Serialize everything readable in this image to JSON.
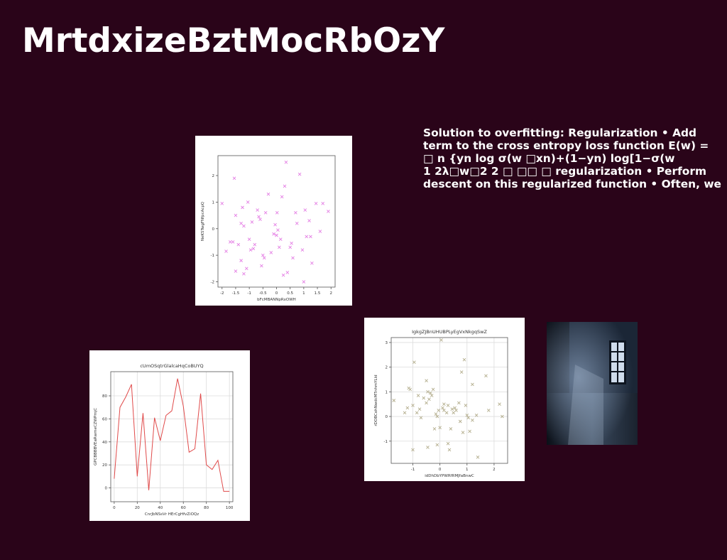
{
  "slide": {
    "title": "MrtdxizeBztMocRbOzY",
    "text_lines": [
      "Solution to overfitting: Regularization • Add",
      "term to the cross entropy loss function E(w) =",
      "□ n {yn log σ(w □xn)+(1−yn) log[1−σ(w",
      "1 2λ□w□2 2 □ □□ □ regularization • Perform",
      "descent on this regularized function • Often, we"
    ]
  },
  "chart_data": [
    {
      "type": "scatter",
      "title": "",
      "xlabel": "bFcMBANNpRxOWH",
      "ylabel": "NeKSTwgFNfpcAcpQ",
      "xlim": [
        -2.15,
        2.15
      ],
      "ylim": [
        -2.2,
        2.75
      ],
      "xticks": [
        -2.0,
        -1.5,
        -1.0,
        -0.5,
        0.0,
        0.5,
        1.0,
        1.5,
        2.0
      ],
      "yticks": [
        -2,
        -1,
        0,
        1,
        2
      ],
      "marker": "x",
      "color": "#e47fe4",
      "grid": false,
      "points": [
        [
          -2.0,
          0.95
        ],
        [
          -1.85,
          -0.85
        ],
        [
          -1.7,
          -0.5
        ],
        [
          -1.6,
          -0.5
        ],
        [
          -1.55,
          1.9
        ],
        [
          -1.5,
          -1.6
        ],
        [
          -1.5,
          0.5
        ],
        [
          -1.4,
          -0.6
        ],
        [
          -1.3,
          0.2
        ],
        [
          -1.3,
          -1.2
        ],
        [
          -1.2,
          -1.7
        ],
        [
          -1.25,
          0.8
        ],
        [
          -1.2,
          0.1
        ],
        [
          -1.1,
          -1.5
        ],
        [
          -1.05,
          1.0
        ],
        [
          -1.0,
          -0.4
        ],
        [
          -0.95,
          -0.8
        ],
        [
          -0.9,
          0.25
        ],
        [
          -0.85,
          -0.75
        ],
        [
          -0.8,
          -0.6
        ],
        [
          -0.7,
          0.7
        ],
        [
          -0.65,
          0.45
        ],
        [
          -0.6,
          0.35
        ],
        [
          -0.55,
          -1.4
        ],
        [
          -0.5,
          -1.0
        ],
        [
          -0.45,
          -1.1
        ],
        [
          -0.4,
          0.6
        ],
        [
          -0.3,
          1.3
        ],
        [
          -0.2,
          -0.9
        ],
        [
          -0.1,
          -0.2
        ],
        [
          -0.05,
          0.15
        ],
        [
          0.0,
          -0.25
        ],
        [
          0.02,
          0.6
        ],
        [
          0.05,
          -0.05
        ],
        [
          0.1,
          -0.7
        ],
        [
          0.15,
          -0.4
        ],
        [
          0.2,
          1.2
        ],
        [
          0.25,
          -1.75
        ],
        [
          0.3,
          1.6
        ],
        [
          0.35,
          2.5
        ],
        [
          0.4,
          -1.65
        ],
        [
          0.5,
          -0.7
        ],
        [
          0.55,
          -0.55
        ],
        [
          0.6,
          -1.1
        ],
        [
          0.7,
          0.6
        ],
        [
          0.75,
          0.2
        ],
        [
          0.85,
          2.05
        ],
        [
          0.95,
          -0.8
        ],
        [
          1.0,
          -2.0
        ],
        [
          1.05,
          0.7
        ],
        [
          1.1,
          -0.3
        ],
        [
          1.2,
          0.3
        ],
        [
          1.25,
          -0.3
        ],
        [
          1.3,
          -1.3
        ],
        [
          1.45,
          0.95
        ],
        [
          1.6,
          -0.1
        ],
        [
          1.7,
          0.95
        ],
        [
          1.9,
          0.65
        ]
      ]
    },
    {
      "type": "scatter",
      "title": "IgkgZJBnUHUBPLyEgVxNkgqSwZ",
      "xlabel": "idDhDbYPWRfRMJfaBnwC",
      "ylabel": "rDOBCohNwdcMTnhmYLld",
      "xlim": [
        -1.8,
        2.5
      ],
      "ylim": [
        -1.9,
        3.2
      ],
      "xticks": [
        -1,
        0,
        1,
        2
      ],
      "yticks": [
        -1,
        0,
        1,
        2,
        3
      ],
      "marker": "x",
      "color": "#b3ad8c",
      "grid": true,
      "points": [
        [
          -1.7,
          0.65
        ],
        [
          -1.3,
          0.15
        ],
        [
          -1.2,
          0.35
        ],
        [
          -1.15,
          1.15
        ],
        [
          -1.1,
          1.1
        ],
        [
          -1.0,
          -1.35
        ],
        [
          -1.0,
          0.45
        ],
        [
          -0.95,
          2.2
        ],
        [
          -0.85,
          0.15
        ],
        [
          -0.8,
          0.85
        ],
        [
          -0.75,
          0.3
        ],
        [
          -0.7,
          -0.05
        ],
        [
          -0.6,
          0.75
        ],
        [
          -0.5,
          0.55
        ],
        [
          -0.5,
          1.45
        ],
        [
          -0.45,
          1.0
        ],
        [
          -0.45,
          -1.25
        ],
        [
          -0.4,
          0.7
        ],
        [
          -0.35,
          0.95
        ],
        [
          -0.3,
          0.85
        ],
        [
          -0.25,
          1.1
        ],
        [
          -0.2,
          -0.5
        ],
        [
          -0.15,
          0.1
        ],
        [
          -0.1,
          0.0
        ],
        [
          -0.1,
          -1.15
        ],
        [
          -0.05,
          0.25
        ],
        [
          0.0,
          -0.45
        ],
        [
          0.05,
          3.1
        ],
        [
          0.1,
          0.35
        ],
        [
          0.15,
          0.25
        ],
        [
          0.15,
          0.5
        ],
        [
          0.25,
          0.15
        ],
        [
          0.3,
          -1.1
        ],
        [
          0.3,
          0.45
        ],
        [
          0.35,
          -1.35
        ],
        [
          0.4,
          -0.5
        ],
        [
          0.45,
          0.3
        ],
        [
          0.5,
          0.15
        ],
        [
          0.55,
          0.35
        ],
        [
          0.6,
          0.25
        ],
        [
          0.7,
          0.55
        ],
        [
          0.75,
          -0.2
        ],
        [
          0.8,
          1.8
        ],
        [
          0.85,
          -0.65
        ],
        [
          0.9,
          2.3
        ],
        [
          0.95,
          0.45
        ],
        [
          1.0,
          0.05
        ],
        [
          1.05,
          -0.05
        ],
        [
          1.1,
          -0.6
        ],
        [
          1.2,
          1.3
        ],
        [
          1.2,
          -0.15
        ],
        [
          1.35,
          0.05
        ],
        [
          1.4,
          -1.65
        ],
        [
          1.7,
          1.65
        ],
        [
          1.8,
          0.25
        ],
        [
          2.2,
          0.5
        ],
        [
          2.3,
          0.0
        ]
      ]
    },
    {
      "type": "line",
      "title": "cUmOSqtrGlalcaHqCoBUYQ",
      "xlabel": "CnrJbNSsVr HErCgHfvZiOQz",
      "ylabel": "GPCBBBBVEaRwmeCZWPmjC",
      "xlim": [
        -3,
        103
      ],
      "ylim": [
        -12,
        101
      ],
      "xticks": [
        0,
        20,
        40,
        60,
        80,
        100
      ],
      "yticks": [
        0,
        20,
        40,
        60,
        80
      ],
      "color": "#e04a4a",
      "grid": true,
      "x": [
        0,
        5,
        10,
        15,
        20,
        25,
        30,
        35,
        40,
        45,
        50,
        55,
        60,
        65,
        70,
        75,
        80,
        85,
        90,
        95,
        100
      ],
      "y": [
        8,
        70,
        79,
        90,
        10,
        65,
        -2,
        61,
        41,
        63,
        67,
        95,
        71,
        31,
        34,
        82,
        20,
        16,
        24,
        -3,
        -3
      ]
    }
  ],
  "photo": {
    "subject": "dark room with window"
  }
}
